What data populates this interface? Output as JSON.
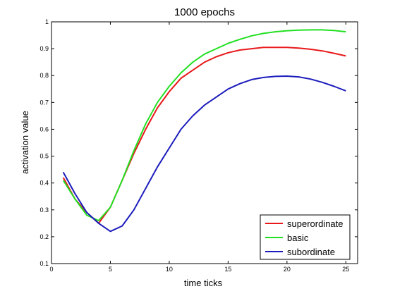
{
  "chart_data": {
    "type": "line",
    "title": "1000 epochs",
    "xlabel": "time ticks",
    "ylabel": "activation value",
    "xlim": [
      0,
      26
    ],
    "ylim": [
      0.1,
      1
    ],
    "x_ticks": [
      "0",
      "5",
      "10",
      "15",
      "20",
      "25"
    ],
    "y_ticks": [
      "0.1",
      "0.2",
      "0.3",
      "0.4",
      "0.5",
      "0.6",
      "0.7",
      "0.8",
      "0.9",
      "1"
    ],
    "x": [
      1,
      2,
      3,
      4,
      5,
      6,
      7,
      8,
      9,
      10,
      11,
      12,
      13,
      14,
      15,
      16,
      17,
      18,
      19,
      20,
      21,
      22,
      23,
      24,
      25
    ],
    "grid": false,
    "legend_position": "bottom-right",
    "series": [
      {
        "name": "superordinate",
        "color": "#e8191b",
        "values": [
          0.42,
          0.34,
          0.29,
          0.25,
          0.31,
          0.41,
          0.51,
          0.6,
          0.68,
          0.74,
          0.79,
          0.82,
          0.85,
          0.87,
          0.885,
          0.895,
          0.9,
          0.905,
          0.905,
          0.905,
          0.902,
          0.898,
          0.892,
          0.883,
          0.873
        ]
      },
      {
        "name": "basic",
        "color": "#22e022",
        "values": [
          0.41,
          0.34,
          0.28,
          0.26,
          0.31,
          0.41,
          0.52,
          0.62,
          0.7,
          0.76,
          0.81,
          0.85,
          0.88,
          0.9,
          0.92,
          0.935,
          0.948,
          0.957,
          0.963,
          0.967,
          0.969,
          0.97,
          0.97,
          0.968,
          0.963
        ]
      },
      {
        "name": "subordinate",
        "color": "#1b1bbd",
        "values": [
          0.44,
          0.36,
          0.29,
          0.25,
          0.22,
          0.24,
          0.3,
          0.38,
          0.46,
          0.53,
          0.6,
          0.65,
          0.69,
          0.72,
          0.75,
          0.77,
          0.785,
          0.793,
          0.797,
          0.798,
          0.795,
          0.787,
          0.775,
          0.76,
          0.743
        ]
      }
    ]
  }
}
